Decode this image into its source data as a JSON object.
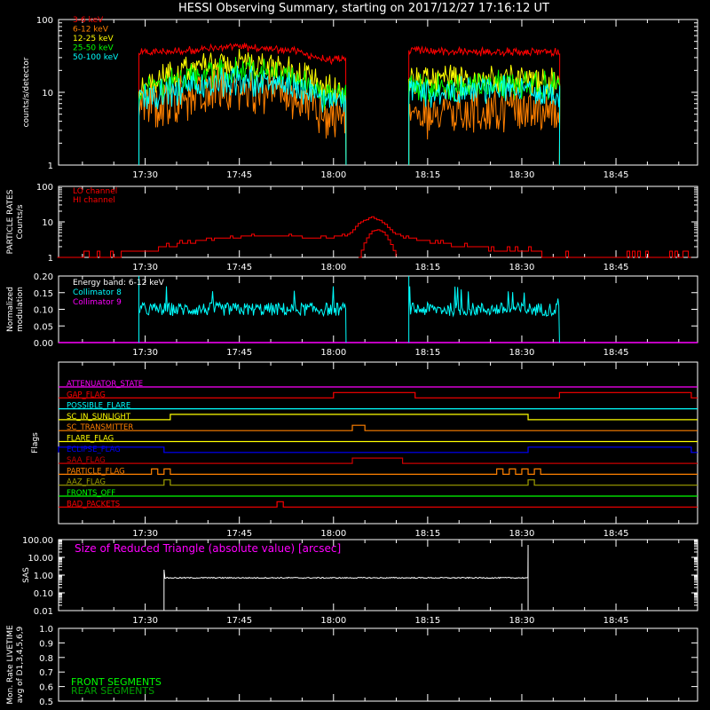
{
  "title": "HESSI Observing Summary, starting on 2017/12/27 17:16:12 UT",
  "time_ticks": [
    "17:30",
    "17:45",
    "18:00",
    "18:15",
    "18:30",
    "18:45"
  ],
  "colors": {
    "white": "#ffffff",
    "red": "#ff0000",
    "orange": "#ff8000",
    "yellow": "#ffff00",
    "green": "#00ff00",
    "cyan": "#00ffff",
    "magenta": "#ff00ff",
    "blue": "#0000ff",
    "dark_green": "#00a000",
    "olive": "#a0a000",
    "dark_red": "#cc0000"
  },
  "chart_data": [
    {
      "id": "counts",
      "type": "line",
      "ylabel": "counts/s/detector",
      "yscale": "log",
      "ylim": [
        1,
        100
      ],
      "yticks": [
        "1",
        "10",
        "100"
      ],
      "x_unit": "minutes after 17:16:12 UT",
      "data_gaps": [
        [
          "17:16",
          "17:29"
        ],
        [
          "18:02",
          "18:12"
        ],
        [
          "18:36",
          "18:57"
        ]
      ],
      "legend": [
        {
          "label": "3-6 keV",
          "color": "#ff0000"
        },
        {
          "label": "6-12 keV",
          "color": "#ff8000"
        },
        {
          "label": "12-25 keV",
          "color": "#ffff00"
        },
        {
          "label": "25-50 keV",
          "color": "#00ff00"
        },
        {
          "label": "50-100 keV",
          "color": "#00ffff"
        }
      ],
      "series": [
        {
          "name": "3-6 keV",
          "color": "#ff0000",
          "x": [
            "17:29",
            "17:37",
            "17:45",
            "17:53",
            "17:59",
            "18:02",
            "18:12",
            "18:20",
            "18:28",
            "18:36"
          ],
          "values": [
            35,
            38,
            42,
            38,
            28,
            28,
            38,
            36,
            36,
            36
          ]
        },
        {
          "name": "6-12 keV",
          "color": "#ff8000",
          "x": [
            "17:29",
            "17:37",
            "17:45",
            "17:53",
            "17:59",
            "18:02",
            "18:12",
            "18:20",
            "18:28",
            "18:36"
          ],
          "values": [
            6,
            9,
            11,
            8,
            5,
            4,
            5,
            5,
            6,
            5
          ]
        },
        {
          "name": "12-25 keV",
          "color": "#ffff00",
          "x": [
            "17:29",
            "17:37",
            "17:45",
            "17:53",
            "17:59",
            "18:02",
            "18:12",
            "18:20",
            "18:28",
            "18:36"
          ],
          "values": [
            12,
            20,
            26,
            20,
            11,
            10,
            14,
            15,
            16,
            14
          ]
        },
        {
          "name": "25-50 keV",
          "color": "#00ff00",
          "x": [
            "17:29",
            "17:37",
            "17:45",
            "17:53",
            "17:59",
            "18:02",
            "18:12",
            "18:20",
            "18:28",
            "18:36"
          ],
          "values": [
            10,
            16,
            20,
            16,
            9,
            9,
            11,
            12,
            13,
            12
          ]
        },
        {
          "name": "50-100 keV",
          "color": "#00ffff",
          "x": [
            "17:29",
            "17:37",
            "17:45",
            "17:53",
            "17:59",
            "18:02",
            "18:12",
            "18:20",
            "18:28",
            "18:36"
          ],
          "values": [
            8,
            12,
            15,
            12,
            8,
            8,
            10,
            10,
            11,
            10
          ]
        }
      ]
    },
    {
      "id": "particle",
      "type": "line",
      "ylabel": [
        "PARTICLE RATES",
        "Counts/s"
      ],
      "yscale": "log",
      "ylim": [
        1,
        100
      ],
      "yticks": [
        "1",
        "10",
        "100"
      ],
      "legend": [
        {
          "label": "LO channel",
          "color": "#ff0000"
        },
        {
          "label": "HI channel",
          "color": "#ff0000"
        }
      ],
      "series": [
        {
          "name": "LO channel",
          "color": "#ff0000",
          "x": [
            "17:16",
            "17:22",
            "17:30",
            "17:36",
            "17:42",
            "17:50",
            "17:58",
            "18:02",
            "18:04",
            "18:06",
            "18:08",
            "18:10",
            "18:14",
            "18:20",
            "18:30",
            "18:36",
            "18:45",
            "18:57"
          ],
          "values": [
            1,
            1,
            1.5,
            2.5,
            3.5,
            4.2,
            3.5,
            4,
            9,
            14,
            9,
            4,
            3,
            2,
            1.5,
            1,
            1,
            1
          ]
        },
        {
          "name": "HI channel",
          "color": "#ff0000",
          "x": [
            "18:04",
            "18:05",
            "18:06",
            "18:07",
            "18:08",
            "18:09",
            "18:10"
          ],
          "values": [
            1,
            3,
            5.5,
            6,
            5,
            2.5,
            1
          ]
        }
      ]
    },
    {
      "id": "modulation",
      "type": "line",
      "ylabel": [
        "Normalized",
        "modulation"
      ],
      "ylim": [
        0,
        0.2
      ],
      "yticks": [
        "0.00",
        "0.05",
        "0.10",
        "0.15",
        "0.20"
      ],
      "legend": [
        {
          "label": "Energy band: 6-12 keV",
          "color": "#ffffff"
        },
        {
          "label": "Collimator 8",
          "color": "#00ffff"
        },
        {
          "label": "Collimator 9",
          "color": "#ff00ff"
        }
      ],
      "series": [
        {
          "name": "Collimator 8",
          "color": "#00ffff",
          "segments": [
            [
              "17:29",
              "18:02"
            ],
            [
              "18:12",
              "18:36"
            ]
          ],
          "mean": 0.1,
          "spread": 0.02
        },
        {
          "name": "Collimator 9",
          "color": "#ff00ff",
          "baseline": 0.0
        }
      ]
    },
    {
      "id": "flags",
      "type": "line",
      "ylabel": "Flags",
      "flags": [
        {
          "name": "ATTENUATOR_STATE",
          "color": "#ff00ff",
          "on": []
        },
        {
          "name": "GAP_FLAG",
          "color": "#ff0000",
          "on": [
            [
              "18:00",
              "18:13"
            ],
            [
              "18:36",
              "18:57"
            ]
          ]
        },
        {
          "name": "POSSIBLE_FLARE",
          "color": "#00ffff",
          "on": []
        },
        {
          "name": "SC_IN_SUNLIGHT",
          "color": "#ffff00",
          "on": [
            [
              "17:34",
              "18:31"
            ]
          ]
        },
        {
          "name": "SC_TRANSMITTER",
          "color": "#ff8000",
          "on": [
            [
              "18:03",
              "18:05"
            ]
          ]
        },
        {
          "name": "FLARE_FLAG",
          "color": "#ffff00",
          "on": []
        },
        {
          "name": "ECLIPSE_FLAG",
          "color": "#0000ff",
          "on": [
            [
              "17:16",
              "17:33"
            ],
            [
              "18:31",
              "18:57"
            ]
          ]
        },
        {
          "name": "SAA_FLAG",
          "color": "#cc0000",
          "on": [
            [
              "18:03",
              "18:11"
            ]
          ]
        },
        {
          "name": "PARTICLE_FLAG",
          "color": "#ff8000",
          "on": [
            [
              "17:31",
              "17:32"
            ],
            [
              "17:33",
              "17:34"
            ],
            [
              "18:26",
              "18:27"
            ],
            [
              "18:28",
              "18:29"
            ],
            [
              "18:30",
              "18:31"
            ],
            [
              "18:32",
              "18:33"
            ]
          ]
        },
        {
          "name": "AAZ_FLAG",
          "color": "#a0a000",
          "on": [
            [
              "17:33",
              "17:34"
            ],
            [
              "18:31",
              "18:32"
            ]
          ]
        },
        {
          "name": "FRONTS_OFF",
          "color": "#00ff00",
          "on": []
        },
        {
          "name": "BAD_PACKETS",
          "color": "#ff0000",
          "on": [
            [
              "17:51",
              "17:52"
            ]
          ]
        }
      ]
    },
    {
      "id": "sas",
      "type": "line",
      "ylabel": "SAS",
      "yscale": "log",
      "ylim": [
        0.01,
        100
      ],
      "yticks": [
        "0.01",
        "0.10",
        "1.00",
        "10.00",
        "100.00"
      ],
      "annotation": "Size of Reduced Triangle (absolute value) [arcsec]",
      "series": [
        {
          "name": "Size of Reduced Triangle (absolute value) [arcsec]",
          "color": "#ffffff",
          "x": [
            "17:33",
            "18:31"
          ],
          "values": [
            0.7,
            0.7
          ]
        }
      ]
    },
    {
      "id": "livetime",
      "type": "line",
      "ylabel": [
        "Mon. Rate LIVETIME",
        "avg of D1,3,4,5,6,9"
      ],
      "ylim": [
        0.5,
        1.0
      ],
      "yticks": [
        "0.5",
        "0.6",
        "0.7",
        "0.8",
        "0.9",
        "1.0"
      ],
      "legend": [
        {
          "label": "FRONT SEGMENTS",
          "color": "#00ff00"
        },
        {
          "label": "REAR SEGMENTS",
          "color": "#00a000"
        }
      ],
      "series": []
    }
  ]
}
